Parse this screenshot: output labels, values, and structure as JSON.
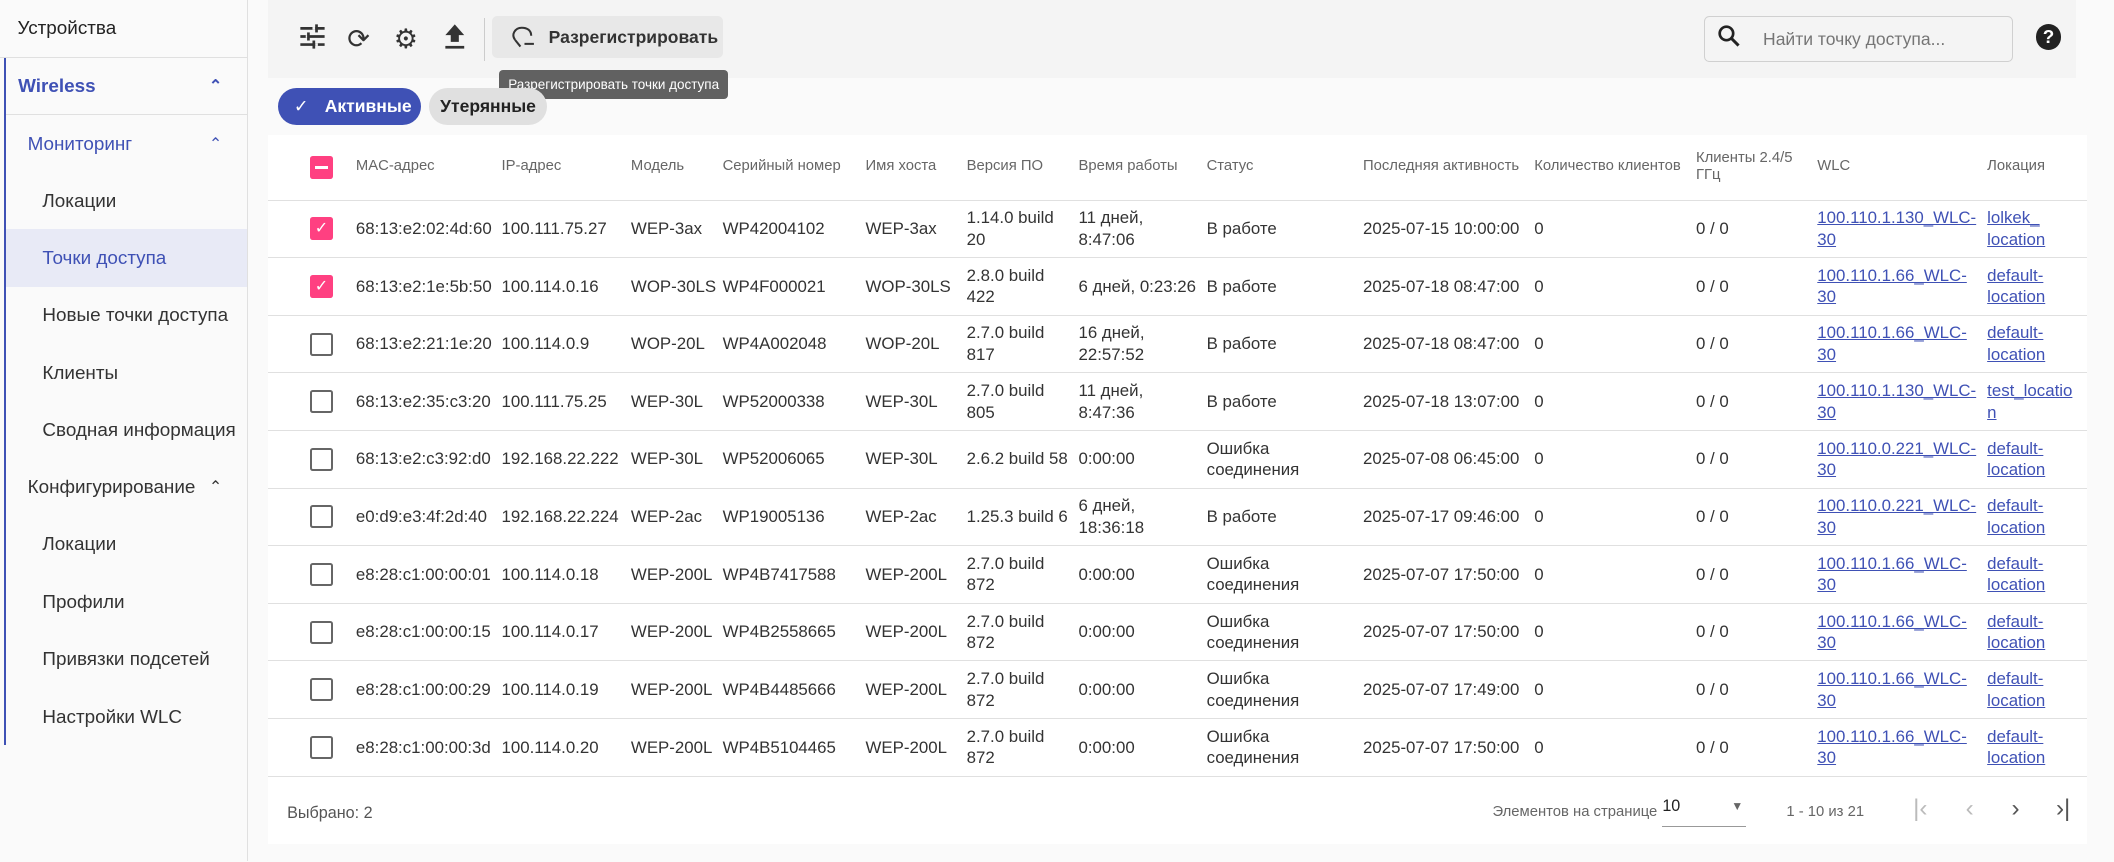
{
  "sidebar": {
    "top": "Устройства",
    "group": "Wireless",
    "monitoring": {
      "label": "Мониторинг",
      "items": [
        "Локации",
        "Точки доступа",
        "Новые точки доступа",
        "Клиенты",
        "Сводная информация"
      ]
    },
    "config": {
      "label": "Конфигурирование",
      "items": [
        "Локации",
        "Профили",
        "Привязки подсетей",
        "Настройки WLC"
      ]
    },
    "active_item": "Точки доступа"
  },
  "toolbar": {
    "icons": [
      "tune-icon",
      "sync-icon",
      "gear-icon",
      "upload-icon"
    ],
    "unregister_label": "Разрегистрировать",
    "tooltip": "Разрегистрировать точки доступа",
    "search_placeholder": "Найти точку доступа...",
    "help": "?"
  },
  "filters": {
    "active": "Активные",
    "lost": "Утерянные",
    "check": "✓"
  },
  "table": {
    "columns": [
      "MAC-адрес",
      "IP-адрес",
      "Модель",
      "Серийный номер",
      "Имя хоста",
      "Версия ПО",
      "Время работы",
      "Статус",
      "Последняя активность",
      "Количество клиентов",
      "Клиенты 2.4/5 ГГц",
      "WLC",
      "Локация"
    ],
    "rows": [
      {
        "checked": true,
        "cells": [
          "68:13:e2:02:4d:60",
          "100.111.75.27",
          "WEP-3ax",
          "WP42004102",
          "WEP-3ax",
          "1.14.0 build 20",
          "11 дней, 8:47:06",
          "В работе",
          "2025-07-15 10:00:00",
          "0",
          "0 / 0",
          "100.110.1.130_WLC-30",
          "lolkek_ location"
        ]
      },
      {
        "checked": true,
        "cells": [
          "68:13:e2:1e:5b:50",
          "100.114.0.16",
          "WOP-30LS",
          "WP4F000021",
          "WOP-30LS",
          "2.8.0 build 422",
          "6 дней, 0:23:26",
          "В работе",
          "2025-07-18 08:47:00",
          "0",
          "0 / 0",
          "100.110.1.66_WLC-30",
          "default-location"
        ]
      },
      {
        "checked": false,
        "cells": [
          "68:13:e2:21:1e:20",
          "100.114.0.9",
          "WOP-20L",
          "WP4A002048",
          "WOP-20L",
          "2.7.0 build 817",
          "16 дней, 22:57:52",
          "В работе",
          "2025-07-18 08:47:00",
          "0",
          "0 / 0",
          "100.110.1.66_WLC-30",
          "default-location"
        ]
      },
      {
        "checked": false,
        "cells": [
          "68:13:e2:35:c3:20",
          "100.111.75.25",
          "WEP-30L",
          "WP52000338",
          "WEP-30L",
          "2.7.0 build 805",
          "11 дней, 8:47:36",
          "В работе",
          "2025-07-18 13:07:00",
          "0",
          "0 / 0",
          "100.110.1.130_WLC-30",
          "test_location"
        ]
      },
      {
        "checked": false,
        "cells": [
          "68:13:e2:c3:92:d0",
          "192.168.22.222",
          "WEP-30L",
          "WP52006065",
          "WEP-30L",
          "2.6.2 build 58",
          "0:00:00",
          "Ошибка соединения",
          "2025-07-08 06:45:00",
          "0",
          "0 / 0",
          "100.110.0.221_WLC-30",
          "default-location"
        ]
      },
      {
        "checked": false,
        "cells": [
          "e0:d9:e3:4f:2d:40",
          "192.168.22.224",
          "WEP-2ac",
          "WP19005136",
          "WEP-2ac",
          "1.25.3 build 6",
          "6 дней, 18:36:18",
          "В работе",
          "2025-07-17 09:46:00",
          "0",
          "0 / 0",
          "100.110.0.221_WLC-30",
          "default-location"
        ]
      },
      {
        "checked": false,
        "cells": [
          "e8:28:c1:00:00:01",
          "100.114.0.18",
          "WEP-200L",
          "WP4B7417588",
          "WEP-200L",
          "2.7.0 build 872",
          "0:00:00",
          "Ошибка соединения",
          "2025-07-07 17:50:00",
          "0",
          "0 / 0",
          "100.110.1.66_WLC-30",
          "default-location"
        ]
      },
      {
        "checked": false,
        "cells": [
          "e8:28:c1:00:00:15",
          "100.114.0.17",
          "WEP-200L",
          "WP4B2558665",
          "WEP-200L",
          "2.7.0 build 872",
          "0:00:00",
          "Ошибка соединения",
          "2025-07-07 17:50:00",
          "0",
          "0 / 0",
          "100.110.1.66_WLC-30",
          "default-location"
        ]
      },
      {
        "checked": false,
        "cells": [
          "e8:28:c1:00:00:29",
          "100.114.0.19",
          "WEP-200L",
          "WP4B4485666",
          "WEP-200L",
          "2.7.0 build 872",
          "0:00:00",
          "Ошибка соединения",
          "2025-07-07 17:49:00",
          "0",
          "0 / 0",
          "100.110.1.66_WLC-30",
          "default-location"
        ]
      },
      {
        "checked": false,
        "cells": [
          "e8:28:c1:00:00:3d",
          "100.114.0.20",
          "WEP-200L",
          "WP4B5104465",
          "WEP-200L",
          "2.7.0 build 872",
          "0:00:00",
          "Ошибка соединения",
          "2025-07-07 17:50:00",
          "0",
          "0 / 0",
          "100.110.1.66_WLC-30",
          "default-location"
        ]
      }
    ]
  },
  "footer": {
    "selected": "Выбрано: 2",
    "per_page_label": "Элементов на странице",
    "per_page": "10",
    "range": "1 - 10 из 21"
  },
  "colors": {
    "accent": "#3f51b5",
    "checkbox": "#ff4081"
  }
}
